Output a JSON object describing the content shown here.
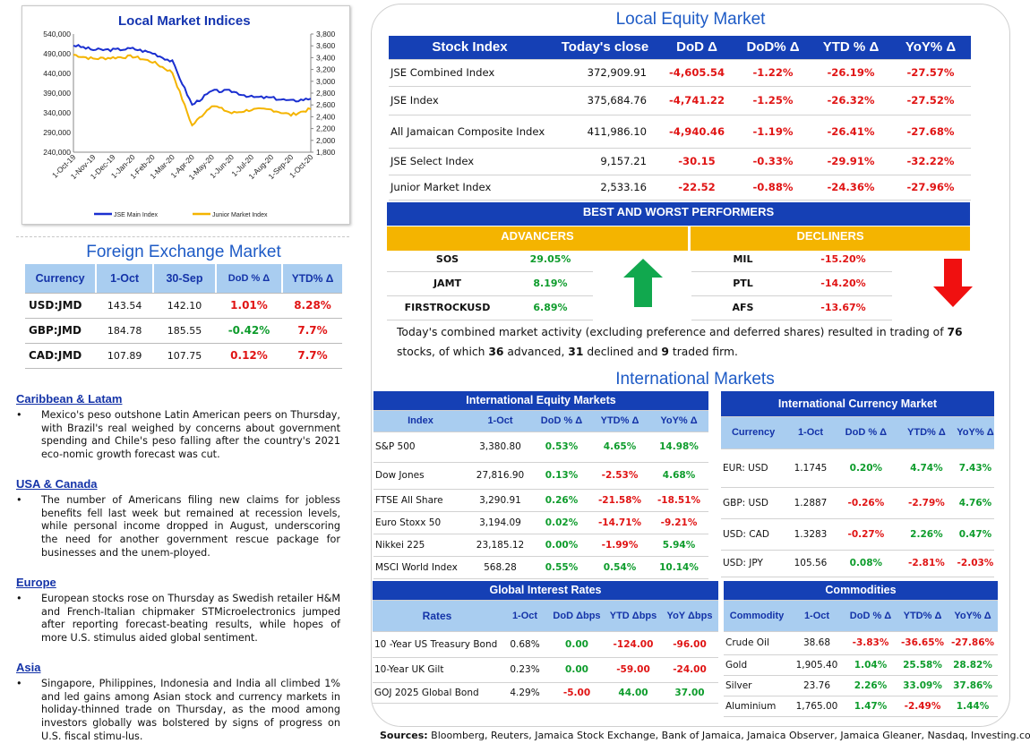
{
  "chart": {
    "title": "Local Market Indices",
    "left_ticks": [
      "540,000",
      "490,000",
      "440,000",
      "390,000",
      "340,000",
      "290,000",
      "240,000"
    ],
    "right_ticks": [
      "3,800",
      "3,600",
      "3,400",
      "3,200",
      "3,000",
      "2,800",
      "2,600",
      "2,400",
      "2,200",
      "2,000",
      "1,800"
    ],
    "x_ticks": [
      "1-Oct-19",
      "1-Nov-19",
      "1-Dec-19",
      "1-Jan-20",
      "1-Feb-20",
      "1-Mar-20",
      "1-Apr-20",
      "1-May-20",
      "1-Jun-20",
      "1-Jul-20",
      "1-Aug-20",
      "1-Sep-20",
      "1-Oct-20"
    ],
    "legend_main": "JSE Main Index",
    "legend_junior": "Junior Market Index",
    "main_color": "#1A2FD0",
    "junior_color": "#F4B400"
  },
  "chart_data": {
    "type": "line",
    "x": [
      "1-Oct-19",
      "1-Nov-19",
      "1-Dec-19",
      "1-Jan-20",
      "1-Feb-20",
      "1-Mar-20",
      "1-Apr-20",
      "1-May-20",
      "1-Jun-20",
      "1-Jul-20",
      "1-Aug-20",
      "1-Sep-20",
      "1-Oct-20"
    ],
    "series": [
      {
        "name": "JSE Main Index",
        "axis": "left",
        "values": [
          512000,
          500000,
          500000,
          503000,
          492000,
          470000,
          360000,
          395000,
          395000,
          380000,
          378000,
          370000,
          376000
        ]
      },
      {
        "name": "Junior Market Index",
        "axis": "right",
        "values": [
          3450,
          3380,
          3400,
          3420,
          3330,
          3150,
          2250,
          2600,
          2460,
          2520,
          2520,
          2430,
          2530
        ]
      }
    ],
    "ylim_left": [
      240000,
      540000
    ],
    "ylim_right": [
      1800,
      3800
    ],
    "legend": "bottom"
  },
  "fx": {
    "title": "Foreign Exchange Market",
    "headers": [
      "Currency",
      "1-Oct",
      "30-Sep",
      "DoD % Δ",
      "YTD% Δ"
    ],
    "rows": [
      {
        "cur": "USD:JMD",
        "a": "143.54",
        "b": "142.10",
        "dod": "1.01%",
        "ytd": "8.28%",
        "dod_c": "neg",
        "ytd_c": "neg"
      },
      {
        "cur": "GBP:JMD",
        "a": "184.78",
        "b": "185.55",
        "dod": "-0.42%",
        "ytd": "7.7%",
        "dod_c": "pos",
        "ytd_c": "neg"
      },
      {
        "cur": "CAD:JMD",
        "a": "107.89",
        "b": "107.75",
        "dod": "0.12%",
        "ytd": "7.7%",
        "dod_c": "neg",
        "ytd_c": "neg"
      }
    ]
  },
  "news": [
    {
      "heading": "Caribbean & Latam",
      "text": "Mexico's peso outshone Latin American peers on Thursday, with Brazil's real weighed by concerns about government spending and Chile's peso falling after the country's 2021 eco-nomic growth forecast was cut."
    },
    {
      "heading": "USA & Canada",
      "text": "The number of Americans filing new claims for jobless benefits fell last week but remained at recession levels, while personal income dropped in August, underscoring the need for another government rescue package for businesses and the unem-ployed."
    },
    {
      "heading": "Europe",
      "text": "European stocks rose on Thursday as Swedish retailer H&M and French-Italian chipmaker STMicroelectronics jumped after reporting forecast-beating results, while hopes of more U.S. stimulus aided global sentiment."
    },
    {
      "heading": "Asia",
      "text": "Singapore, Philippines, Indonesia and India all climbed 1% and led gains among Asian stock and currency markets in holiday-thinned trade on Thursday, as the mood among investors globally was bolstered by signs of progress on U.S. fiscal stimu-lus."
    }
  ],
  "equity": {
    "title": "Local Equity Market",
    "headers": [
      "Stock Index",
      "Today's close",
      "DoD  Δ",
      "DoD% Δ",
      "YTD % Δ",
      "YoY% Δ"
    ],
    "rows": [
      [
        "JSE Combined Index",
        "372,909.91",
        "-4,605.54",
        "-1.22%",
        "-26.19%",
        "-27.57%"
      ],
      [
        "JSE Index",
        "375,684.76",
        "-4,741.22",
        "-1.25%",
        "-26.32%",
        "-27.52%"
      ],
      [
        "All Jamaican Composite Index",
        "411,986.10",
        "-4,940.46",
        "-1.19%",
        "-26.41%",
        "-27.68%"
      ],
      [
        "JSE Select Index",
        "9,157.21",
        "-30.15",
        "-0.33%",
        "-29.91%",
        "-32.22%"
      ],
      [
        "Junior Market Index",
        "2,533.16",
        "-22.52",
        "-0.88%",
        "-24.36%",
        "-27.96%"
      ]
    ]
  },
  "performers": {
    "title": "BEST AND WORST PERFORMERS",
    "adv_label": "ADVANCERS",
    "dec_label": "DECLINERS",
    "advancers": [
      {
        "sym": "SOS",
        "pct": "29.05%"
      },
      {
        "sym": "JAMT",
        "pct": "8.19%"
      },
      {
        "sym": "FIRSTROCKUSD",
        "pct": "6.89%"
      }
    ],
    "decliners": [
      {
        "sym": "MIL",
        "pct": "-15.20%"
      },
      {
        "sym": "PTL",
        "pct": "-14.20%"
      },
      {
        "sym": "AFS",
        "pct": "-13.67%"
      }
    ]
  },
  "summary": {
    "p1": "Today's combined market activity (excluding preference and deferred shares) resulted in trading of ",
    "total": "76",
    "p2": " stocks, of which ",
    "adv": "36",
    "p3": " advanced, ",
    "dec": "31",
    "p4": " declined and ",
    "firm": "9",
    "p5": " traded firm."
  },
  "intl_title": "International Markets",
  "intl_equity": {
    "title": "International Equity Markets",
    "headers": [
      "Index",
      "1-Oct",
      "DoD % Δ",
      "YTD% Δ",
      "YoY% Δ"
    ],
    "rows": [
      [
        "S&P 500",
        "3,380.80",
        "0.53%",
        "4.65%",
        "14.98%"
      ],
      [
        "Dow Jones",
        "27,816.90",
        "0.13%",
        "-2.53%",
        "4.68%"
      ],
      [
        "FTSE All Share",
        "3,290.91",
        "0.26%",
        "-21.58%",
        "-18.51%"
      ],
      [
        "Euro Stoxx 50",
        "3,194.09",
        "0.02%",
        "-14.71%",
        "-9.21%"
      ],
      [
        "Nikkei 225",
        "23,185.12",
        "0.00%",
        "-1.99%",
        "5.94%"
      ],
      [
        "MSCI World Index",
        "568.28",
        "0.55%",
        "0.54%",
        "10.14%"
      ]
    ]
  },
  "intl_fx": {
    "title": "International Currency Market",
    "headers": [
      "Currency",
      "1-Oct",
      "DoD % Δ",
      "YTD% Δ",
      "YoY% Δ"
    ],
    "rows": [
      [
        "EUR: USD",
        "1.1745",
        "0.20%",
        "4.74%",
        "7.43%"
      ],
      [
        "GBP: USD",
        "1.2887",
        "-0.26%",
        "-2.79%",
        "4.76%"
      ],
      [
        "USD: CAD",
        "1.3283",
        "-0.27%",
        "2.26%",
        "0.47%"
      ],
      [
        "USD: JPY",
        "105.56",
        "0.08%",
        "-2.81%",
        "-2.03%"
      ]
    ]
  },
  "rates": {
    "title": "Global Interest Rates",
    "headers": [
      "Rates",
      "1-Oct",
      "DoD Δbps",
      "YTD Δbps",
      "YoY Δbps"
    ],
    "rows": [
      [
        "10 -Year US Treasury Bond",
        "0.68%",
        "0.00",
        "-124.00",
        "-96.00"
      ],
      [
        "10-Year UK Gilt",
        "0.23%",
        "0.00",
        "-59.00",
        "-24.00"
      ],
      [
        "GOJ 2025 Global Bond",
        "4.29%",
        "-5.00",
        "44.00",
        "37.00"
      ]
    ]
  },
  "commodities": {
    "title": "Commodities",
    "headers": [
      "Commodity",
      "1-Oct",
      "DoD % Δ",
      "YTD% Δ",
      "YoY% Δ"
    ],
    "rows": [
      [
        "Crude Oil",
        "38.68",
        "-3.83%",
        "-36.65%",
        "-27.86%"
      ],
      [
        "Gold",
        "1,905.40",
        "1.04%",
        "25.58%",
        "28.82%"
      ],
      [
        "Silver",
        "23.76",
        "2.26%",
        "33.09%",
        "37.86%"
      ],
      [
        "Aluminium",
        "1,765.00",
        "1.47%",
        "-2.49%",
        "1.44%"
      ]
    ]
  },
  "sources": {
    "label": "Sources:",
    "text": " Bloomberg, Reuters, Jamaica Stock Exchange, Bank of Jamaica, Jamaica Observer, Jamaica Gleaner, Nasdaq, Investing.com"
  }
}
